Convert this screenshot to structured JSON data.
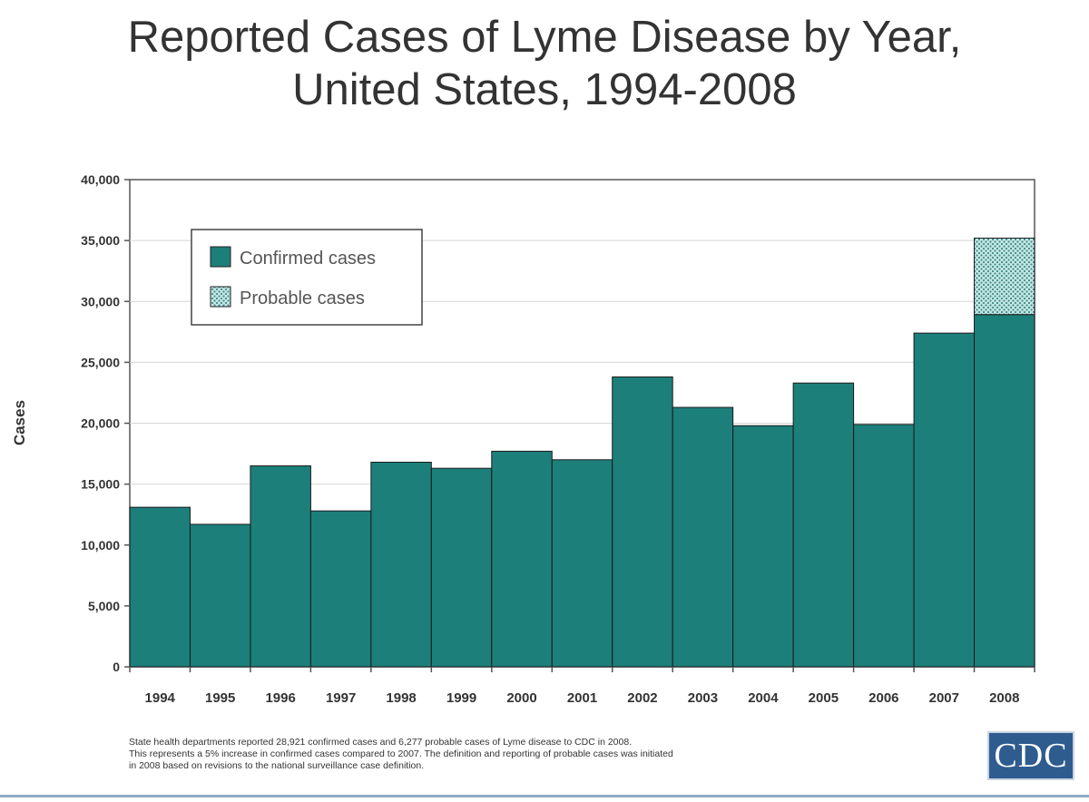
{
  "chart_data": {
    "type": "bar",
    "title": [
      "Reported Cases of Lyme Disease by Year,",
      "United States, 1994-2008"
    ],
    "xlabel": "",
    "ylabel": "Cases",
    "ylim": [
      0,
      40000
    ],
    "yticks": [
      0,
      5000,
      10000,
      15000,
      20000,
      25000,
      30000,
      35000,
      40000
    ],
    "ytick_labels": [
      "0",
      "5,000",
      "10,000",
      "15,000",
      "20,000",
      "25,000",
      "30,000",
      "35,000",
      "40,000"
    ],
    "categories": [
      "1994",
      "1995",
      "1996",
      "1997",
      "1998",
      "1999",
      "2000",
      "2001",
      "2002",
      "2003",
      "2004",
      "2005",
      "2006",
      "2007",
      "2008"
    ],
    "stacked": true,
    "grid": true,
    "legend_position": "top-left",
    "series": [
      {
        "name": "Confirmed cases",
        "color": "#1d7f7a",
        "values": [
          13100,
          11700,
          16500,
          12800,
          16800,
          16300,
          17700,
          17000,
          23800,
          21300,
          19800,
          23300,
          19900,
          27400,
          28921
        ]
      },
      {
        "name": "Probable cases",
        "color": "#bfe3e0",
        "pattern": "dotted",
        "values": [
          0,
          0,
          0,
          0,
          0,
          0,
          0,
          0,
          0,
          0,
          0,
          0,
          0,
          0,
          6277
        ]
      }
    ]
  },
  "footnote": [
    "State health departments reported 28,921 confirmed cases and 6,277 probable cases of Lyme disease to CDC in 2008.",
    "This represents a 5% increase in confirmed cases compared to 2007. The definition and reporting of probable cases was initiated",
    "in 2008 based on revisions to the national surveillance case definition."
  ],
  "logo_text": "CDC"
}
